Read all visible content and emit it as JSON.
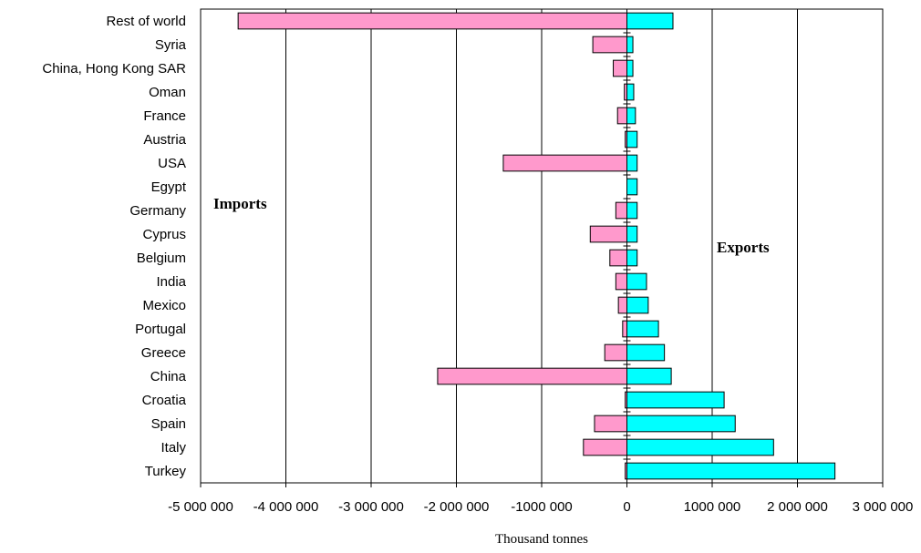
{
  "chart_data": {
    "type": "bar",
    "orientation": "horizontal",
    "categories": [
      "Rest of world",
      "Syria",
      "China, Hong Kong SAR",
      "Oman",
      "France",
      "Austria",
      "USA",
      "Egypt",
      "Germany",
      "Cyprus",
      "Belgium",
      "India",
      "Mexico",
      "Portugal",
      "Greece",
      "China",
      "Croatia",
      "Spain",
      "Italy",
      "Turkey"
    ],
    "series": [
      {
        "key": "imports",
        "color": "#ff99cc",
        "values": [
          -4560000,
          -400000,
          -160000,
          -30000,
          -110000,
          -20000,
          -1450000,
          0,
          -130000,
          -430000,
          -200000,
          -130000,
          -100000,
          -50000,
          -260000,
          -2220000,
          -20000,
          -380000,
          -510000,
          -20000
        ]
      },
      {
        "key": "exports",
        "color": "#00ffff",
        "values": [
          540000,
          70000,
          70000,
          80000,
          100000,
          120000,
          120000,
          120000,
          120000,
          120000,
          120000,
          230000,
          250000,
          370000,
          440000,
          520000,
          1140000,
          1270000,
          1720000,
          2440000
        ]
      }
    ],
    "annotations": {
      "imports_label": "Imports",
      "exports_label": "Exports"
    },
    "xlabel": "Thousand tonnes",
    "xlim": [
      -5000000,
      3000000
    ],
    "xticks": [
      -5000000,
      -4000000,
      -3000000,
      -2000000,
      -1000000,
      0,
      1000000,
      2000000,
      3000000
    ],
    "xtick_labels": [
      "-5 000 000",
      "-4 000 000",
      "-3 000 000",
      "-2 000 000",
      "-1000 000",
      "0",
      "1000 000",
      "2 000 000",
      "3 000 000"
    ],
    "grid": "vertical"
  }
}
